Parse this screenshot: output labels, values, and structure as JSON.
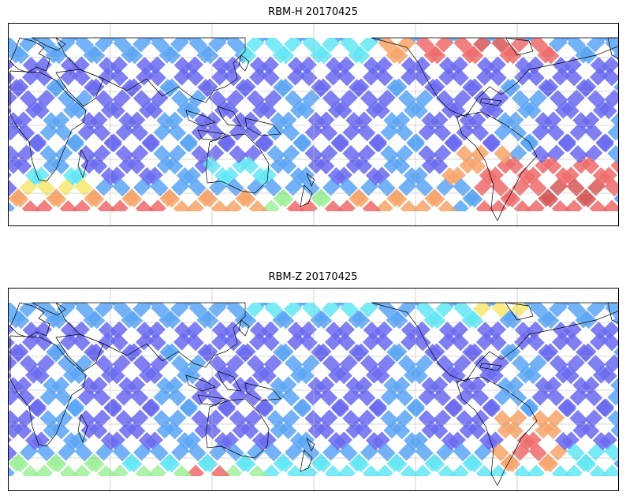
{
  "panels": [
    {
      "title": "RBM-H 20170425"
    },
    {
      "title": "RBM-Z 20170425"
    }
  ],
  "colors": {
    "deep": "#6a6af0",
    "blue": "#5aa5f5",
    "cyan": "#62e6f4",
    "green": "#9ff09a",
    "yellow": "#f7e870",
    "orange": "#f7a56a",
    "red": "#ee6b6b",
    "darkred": "#d65858",
    "coast": "#000000",
    "grid": "#b5b5b5"
  }
}
